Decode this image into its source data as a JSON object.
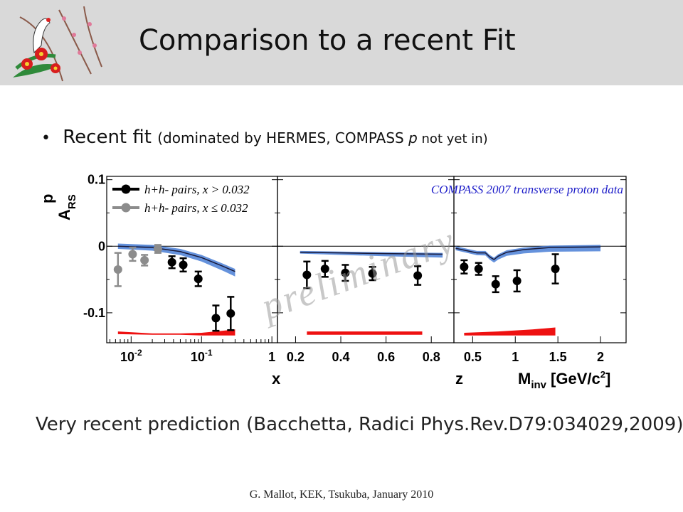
{
  "slide": {
    "title": "Comparison to a recent Fit",
    "bullet": {
      "main": "Recent fit",
      "paren_open": "(dominated by HERMES, ",
      "compass": "COMPASS ",
      "p": "p",
      "not_yet_in": " not yet in)"
    },
    "prediction": "Very recent prediction (Bacchetta, Radici Phys.Rev.D79:034029,2009)",
    "footer": "G. Mallot, KEK, Tsukuba, January 2010",
    "logo_icon": "crane-plum-blossom-logo"
  },
  "chart_data": {
    "type": "scatter",
    "ylabel": "A",
    "ylabel_sup": "p",
    "ylabel_sub": "RS",
    "ylim": [
      -0.145,
      0.105
    ],
    "yticks": [
      "0.1",
      "0",
      "-0.1"
    ],
    "legend": [
      {
        "label": "h+h- pairs, x > 0.032",
        "color": "#000000"
      },
      {
        "label": "h+h- pairs, x ≤ 0.032",
        "color": "#8c8c8c"
      }
    ],
    "annotation": "COMPASS 2007 transverse proton data",
    "watermark": "preliminary",
    "colors": {
      "black": "#000000",
      "gray": "#8c8c8c",
      "fit": "#4a7fd6",
      "fit_line": "#1a1a3a",
      "syst": "#ee1111",
      "annotation": "#1a1ac8"
    },
    "panels": [
      {
        "id": "x",
        "xlabel": "x",
        "xscale": "log",
        "xlim": [
          0.0045,
          1.2
        ],
        "xticks": [
          {
            "v": 0.01,
            "label": "10",
            "sup": "-2"
          },
          {
            "v": 0.1,
            "label": "10",
            "sup": "-1"
          },
          {
            "v": 1,
            "label": "1",
            "sup": ""
          }
        ],
        "points": [
          {
            "x": 0.0065,
            "y": -0.035,
            "err": 0.025,
            "color": "gray"
          },
          {
            "x": 0.0105,
            "y": -0.012,
            "err": 0.01,
            "color": "gray"
          },
          {
            "x": 0.0155,
            "y": -0.021,
            "err": 0.008,
            "color": "gray"
          },
          {
            "x": 0.024,
            "y": -0.004,
            "err": 0.006,
            "color": "gray"
          },
          {
            "x": 0.038,
            "y": -0.024,
            "err": 0.009,
            "color": "black"
          },
          {
            "x": 0.055,
            "y": -0.028,
            "err": 0.01,
            "color": "black"
          },
          {
            "x": 0.09,
            "y": -0.049,
            "err": 0.011,
            "color": "black"
          },
          {
            "x": 0.16,
            "y": -0.108,
            "err": 0.019,
            "color": "black"
          },
          {
            "x": 0.26,
            "y": -0.101,
            "err": 0.025,
            "color": "black"
          }
        ],
        "fit": {
          "x": [
            0.0065,
            0.02,
            0.05,
            0.1,
            0.2,
            0.3
          ],
          "y": [
            0,
            -0.002,
            -0.008,
            -0.017,
            -0.03,
            -0.038
          ],
          "band": 0.004
        },
        "syst": {
          "x": [
            0.0065,
            0.02,
            0.05,
            0.1,
            0.2,
            0.3
          ],
          "top": [
            -0.128,
            -0.131,
            -0.131,
            -0.13,
            -0.127,
            -0.125
          ],
          "bottom": [
            -0.132,
            -0.133,
            -0.133,
            -0.134,
            -0.134,
            -0.134
          ]
        }
      },
      {
        "id": "z",
        "xlabel": "z",
        "xscale": "linear",
        "xlim": [
          0.12,
          0.9
        ],
        "xticks": [
          {
            "v": 0.2,
            "label": "0.2",
            "sup": ""
          },
          {
            "v": 0.4,
            "label": "0.4",
            "sup": ""
          },
          {
            "v": 0.6,
            "label": "0.6",
            "sup": ""
          },
          {
            "v": 0.8,
            "label": "0.8",
            "sup": ""
          }
        ],
        "points": [
          {
            "x": 0.25,
            "y": -0.043,
            "err": 0.02,
            "color": "black"
          },
          {
            "x": 0.33,
            "y": -0.034,
            "err": 0.012,
            "color": "black"
          },
          {
            "x": 0.42,
            "y": -0.04,
            "err": 0.012,
            "color": "black"
          },
          {
            "x": 0.54,
            "y": -0.041,
            "err": 0.01,
            "color": "black"
          },
          {
            "x": 0.74,
            "y": -0.044,
            "err": 0.014,
            "color": "black"
          }
        ],
        "fit": {
          "x": [
            0.22,
            0.4,
            0.6,
            0.85
          ],
          "y": [
            -0.009,
            -0.01,
            -0.011,
            -0.012
          ],
          "band": 0.002
        },
        "syst": {
          "x": [
            0.25,
            0.5,
            0.76
          ],
          "top": [
            -0.128,
            -0.128,
            -0.128
          ],
          "bottom": [
            -0.133,
            -0.133,
            -0.133
          ]
        }
      },
      {
        "id": "minv",
        "xlabel": "M",
        "xlabel_sub": "inv",
        "xlabel_unit": "[GeV/c",
        "xlabel_unit_sup": "2",
        "xlabel_unit_end": "]",
        "xscale": "linear",
        "xlim": [
          0.28,
          2.3
        ],
        "xticks": [
          {
            "v": 0.5,
            "label": "0.5",
            "sup": ""
          },
          {
            "v": 1,
            "label": "1",
            "sup": ""
          },
          {
            "v": 1.5,
            "label": "1.5",
            "sup": ""
          },
          {
            "v": 2,
            "label": "2",
            "sup": ""
          }
        ],
        "points": [
          {
            "x": 0.4,
            "y": -0.031,
            "err": 0.01,
            "color": "black"
          },
          {
            "x": 0.57,
            "y": -0.034,
            "err": 0.009,
            "color": "black"
          },
          {
            "x": 0.77,
            "y": -0.057,
            "err": 0.012,
            "color": "black"
          },
          {
            "x": 1.02,
            "y": -0.052,
            "err": 0.016,
            "color": "black"
          },
          {
            "x": 1.47,
            "y": -0.034,
            "err": 0.022,
            "color": "black"
          }
        ],
        "fit": {
          "x": [
            0.3,
            0.55,
            0.65,
            0.7,
            0.75,
            0.8,
            0.9,
            1.1,
            1.4,
            2.0
          ],
          "y": [
            -0.003,
            -0.01,
            -0.01,
            -0.016,
            -0.02,
            -0.015,
            -0.009,
            -0.005,
            -0.002,
            -0.001
          ],
          "band": 0.003
        },
        "syst": {
          "x": [
            0.4,
            0.8,
            1.2,
            1.47
          ],
          "top": [
            -0.13,
            -0.128,
            -0.125,
            -0.122
          ],
          "bottom": [
            -0.134,
            -0.134,
            -0.134,
            -0.134
          ]
        }
      }
    ]
  }
}
